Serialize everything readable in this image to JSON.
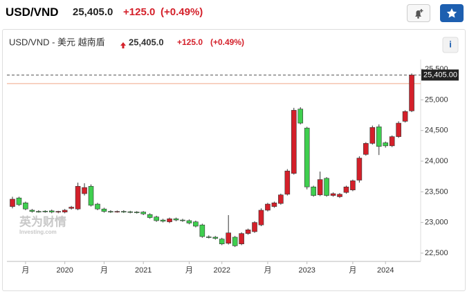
{
  "header": {
    "symbol": "USD/VND",
    "price": "25,405.0",
    "change": "+125.0",
    "change_pct": "(+0.49%)"
  },
  "chart_data": {
    "type": "candlestick",
    "title": "USD/VND - 美元 越南盾",
    "price": "25,405.0",
    "change": "+125.0",
    "change_pct": "(+0.49%)",
    "info": "i",
    "watermark": [
      "英为财情",
      "Investing.com"
    ],
    "categories": [
      null,
      null,
      "月",
      null,
      null,
      null,
      null,
      null,
      "2020",
      null,
      null,
      null,
      null,
      null,
      "月",
      null,
      null,
      null,
      null,
      null,
      "2021",
      null,
      null,
      null,
      null,
      null,
      null,
      "月",
      null,
      null,
      null,
      null,
      "2022",
      null,
      null,
      null,
      null,
      null,
      null,
      "月",
      null,
      null,
      null,
      null,
      null,
      "2023",
      null,
      null,
      null,
      null,
      null,
      null,
      "月",
      null,
      null,
      null,
      null,
      "2024",
      null,
      null,
      null,
      null
    ],
    "open": [
      23260,
      23400,
      23320,
      23200,
      23180,
      23185,
      23190,
      23170,
      23170,
      23230,
      23220,
      23470,
      23590,
      23300,
      23220,
      23180,
      23175,
      23180,
      23175,
      23170,
      23170,
      23130,
      23090,
      23040,
      23010,
      23060,
      23040,
      23030,
      23010,
      22960,
      22765,
      22760,
      22730,
      22660,
      22760,
      22650,
      22820,
      22850,
      22960,
      23200,
      23260,
      23310,
      23460,
      23800,
      24850,
      24540,
      23580,
      23450,
      23720,
      23440,
      23420,
      23490,
      23530,
      23690,
      24110,
      24290,
      24560,
      24300,
      24250,
      24400,
      24650,
      24820
    ],
    "high": [
      23420,
      23420,
      23340,
      23220,
      23200,
      23200,
      23210,
      23190,
      23220,
      23270,
      23650,
      23640,
      23620,
      23320,
      23240,
      23200,
      23195,
      23200,
      23190,
      23185,
      23185,
      23150,
      23110,
      23060,
      23080,
      23080,
      23060,
      23050,
      23030,
      22980,
      22790,
      22780,
      22750,
      23120,
      22780,
      22840,
      22900,
      23020,
      23230,
      23320,
      23340,
      23470,
      23870,
      24870,
      24880,
      24560,
      23600,
      23830,
      23740,
      23490,
      23480,
      23600,
      23700,
      24080,
      24310,
      24580,
      24600,
      24320,
      24420,
      24650,
      24830,
      25430
    ],
    "low": [
      23230,
      23270,
      23200,
      23160,
      23160,
      23160,
      23150,
      23150,
      23150,
      23210,
      23200,
      23440,
      23260,
      23200,
      23160,
      23155,
      23160,
      23155,
      23150,
      23145,
      23120,
      23060,
      23010,
      23000,
      22990,
      23020,
      23010,
      22970,
      22920,
      22750,
      22740,
      22720,
      22630,
      22640,
      22600,
      22630,
      22800,
      22830,
      22940,
      23180,
      23240,
      23290,
      23440,
      23780,
      24600,
      23540,
      23420,
      23430,
      23420,
      23420,
      23400,
      23470,
      23510,
      23650,
      24090,
      24270,
      24100,
      24220,
      24230,
      24380,
      24630,
      24800
    ],
    "close": [
      23380,
      23290,
      23220,
      23180,
      23175,
      23180,
      23170,
      23180,
      23200,
      23250,
      23590,
      23570,
      23280,
      23220,
      23180,
      23175,
      23180,
      23175,
      23170,
      23165,
      23140,
      23080,
      23030,
      23020,
      23060,
      23040,
      23030,
      22990,
      22940,
      22770,
      22760,
      22740,
      22650,
      22830,
      22620,
      22820,
      22880,
      23000,
      23200,
      23300,
      23320,
      23450,
      23840,
      24830,
      24620,
      23580,
      23440,
      23700,
      23440,
      23470,
      23460,
      23580,
      23680,
      24050,
      24290,
      24550,
      24240,
      24250,
      24400,
      24620,
      24810,
      25405
    ],
    "up_color": "#d4202a",
    "down_color": "#3fcf4f",
    "ylim": [
      22200,
      25620
    ],
    "yticks": [
      {
        "value": 22500,
        "label": "22,500"
      },
      {
        "value": 23000,
        "label": "23,000"
      },
      {
        "value": 23500,
        "label": "23,500"
      },
      {
        "value": 24000,
        "label": "24,000"
      },
      {
        "value": 24500,
        "label": "24,500"
      },
      {
        "value": 25000,
        "label": "25,000"
      },
      {
        "value": 25500,
        "label": "25,500"
      }
    ],
    "current_price": {
      "value": 25405,
      "label": "25,405.00"
    },
    "reference_line": {
      "value": 25265,
      "color": "#f0a888"
    }
  }
}
